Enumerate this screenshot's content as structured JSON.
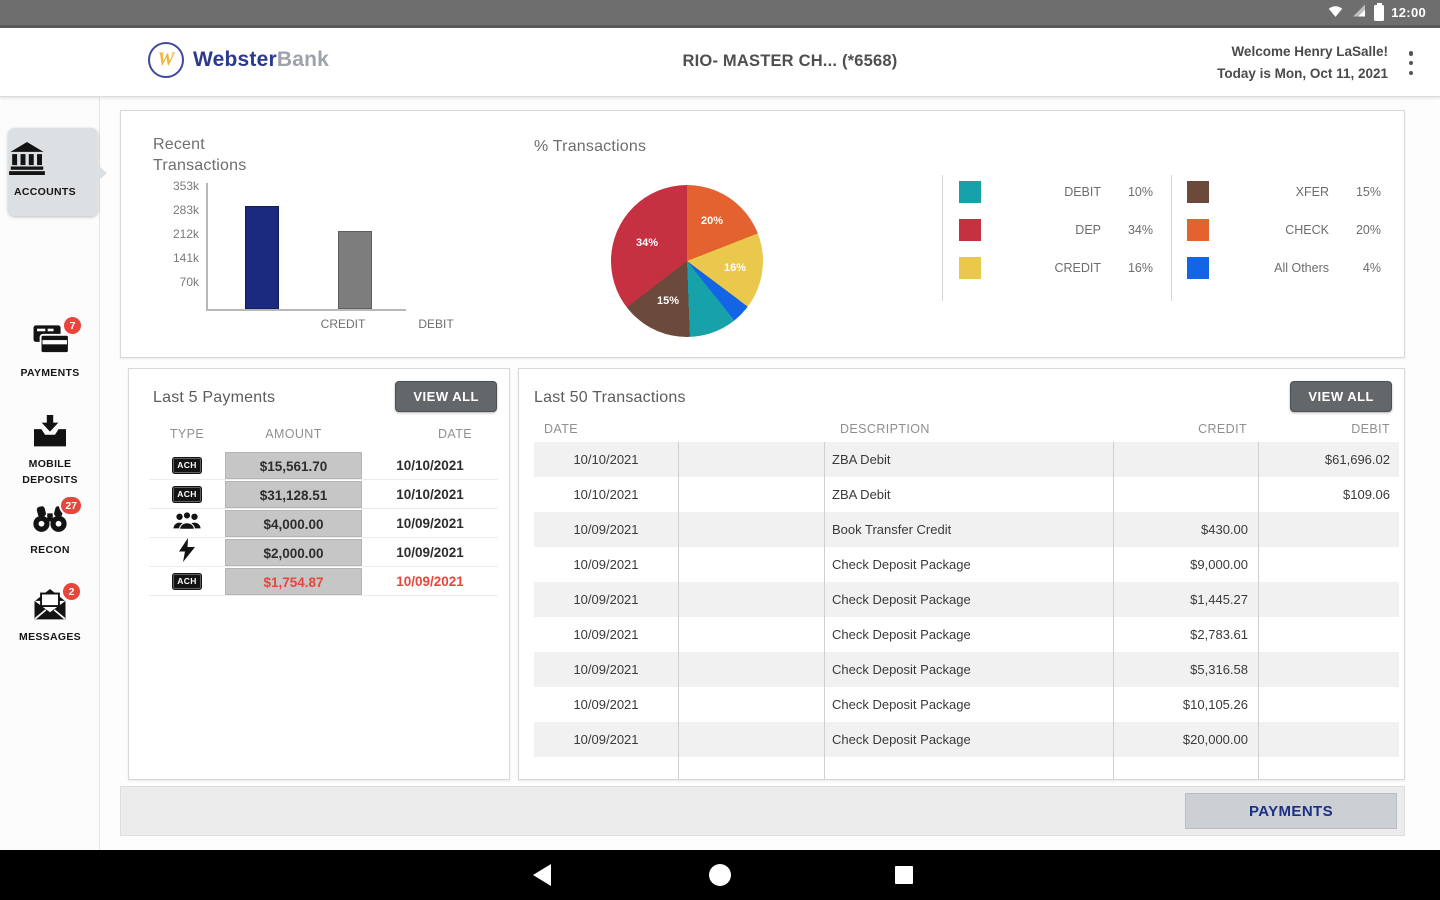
{
  "status_bar": {
    "time": "12:00"
  },
  "header": {
    "brand": {
      "logo_letter": "W",
      "name_primary": "Webster",
      "name_secondary": "Bank"
    },
    "account_title": "RIO- MASTER CH...  (*6568)",
    "welcome_line": "Welcome Henry LaSalle!",
    "date_line": "Today is Mon, Oct 11, 2021"
  },
  "sidebar": {
    "items": [
      {
        "label": "ACCOUNTS",
        "icon": "bank-icon",
        "selected": true,
        "badge": ""
      },
      {
        "label": "PAYMENTS",
        "icon": "cards-icon",
        "selected": false,
        "badge": "7"
      },
      {
        "label": "MOBILE DEPOSITS",
        "icon": "deposit-icon",
        "selected": false,
        "badge": ""
      },
      {
        "label": "RECON",
        "icon": "binoculars-icon",
        "selected": false,
        "badge": "27"
      },
      {
        "label": "MESSAGES",
        "icon": "envelope-icon",
        "selected": false,
        "badge": "2"
      }
    ]
  },
  "chart_data": [
    {
      "type": "bar",
      "title": "Recent\nTransactions",
      "categories": [
        "CREDIT",
        "DEBIT"
      ],
      "values": [
        310000,
        235000
      ],
      "colors": [
        "#1b2a7e",
        "#7d7d7d"
      ],
      "border_colors": [
        "#101c5e",
        "#5f5f5f"
      ],
      "ytick_labels": [
        "353k",
        "283k",
        "212k",
        "141k",
        "70k"
      ],
      "ylim": [
        0,
        378000
      ],
      "grid": false
    },
    {
      "type": "pie",
      "title": "% Transactions",
      "start_angle_deg": -4,
      "slices": [
        {
          "label": "CHECK",
          "value": 20,
          "pct_text": "20%",
          "color": "#e4622f"
        },
        {
          "label": "CREDIT",
          "value": 16,
          "pct_text": "16%",
          "color": "#eac84b"
        },
        {
          "label": "All Others",
          "value": 4,
          "pct_text": "4%",
          "color": "#1464e6"
        },
        {
          "label": "DEBIT",
          "value": 10,
          "pct_text": "10%",
          "color": "#16a2a8"
        },
        {
          "label": "XFER",
          "value": 15,
          "pct_text": "15%",
          "color": "#6c4a3b"
        },
        {
          "label": "DEP",
          "value": 34,
          "pct_text": "34%",
          "color": "#c53140"
        }
      ],
      "legend_position": "right",
      "legend_columns": [
        [
          {
            "label": "DEBIT",
            "pct_text": "10%"
          },
          {
            "label": "DEP",
            "pct_text": "34%"
          },
          {
            "label": "CREDIT",
            "pct_text": "16%"
          }
        ],
        [
          {
            "label": "XFER",
            "pct_text": "15%"
          },
          {
            "label": "CHECK",
            "pct_text": "20%"
          },
          {
            "label": "All Others",
            "pct_text": "4%"
          }
        ]
      ]
    }
  ],
  "payments_panel": {
    "title": "Last 5 Payments",
    "view_all_label": "VIEW ALL",
    "columns": [
      "TYPE",
      "AMOUNT",
      "DATE"
    ],
    "rows": [
      {
        "type": "ACH",
        "type_icon": "ach-badge-icon",
        "amount": "$15,561.70",
        "date": "10/10/2021",
        "alert": false
      },
      {
        "type": "ACH",
        "type_icon": "ach-badge-icon",
        "amount": "$31,128.51",
        "date": "10/10/2021",
        "alert": false
      },
      {
        "type": "",
        "type_icon": "people-icon",
        "amount": "$4,000.00",
        "date": "10/09/2021",
        "alert": false
      },
      {
        "type": "",
        "type_icon": "lightning-icon",
        "amount": "$2,000.00",
        "date": "10/09/2021",
        "alert": false
      },
      {
        "type": "ACH",
        "type_icon": "ach-badge-icon",
        "amount": "$1,754.87",
        "date": "10/09/2021",
        "alert": true
      }
    ]
  },
  "transactions_panel": {
    "title": "Last 50 Transactions",
    "view_all_label": "VIEW ALL",
    "columns": [
      "DATE",
      "",
      "DESCRIPTION",
      "CREDIT",
      "DEBIT"
    ],
    "rows": [
      {
        "date": "10/10/2021",
        "description": "ZBA Debit",
        "credit": "",
        "debit": "$61,696.02"
      },
      {
        "date": "10/10/2021",
        "description": "ZBA Debit",
        "credit": "",
        "debit": "$109.06"
      },
      {
        "date": "10/09/2021",
        "description": "Book Transfer Credit",
        "credit": "$430.00",
        "debit": ""
      },
      {
        "date": "10/09/2021",
        "description": "Check Deposit Package",
        "credit": "$9,000.00",
        "debit": ""
      },
      {
        "date": "10/09/2021",
        "description": "Check Deposit Package",
        "credit": "$1,445.27",
        "debit": ""
      },
      {
        "date": "10/09/2021",
        "description": "Check Deposit Package",
        "credit": "$2,783.61",
        "debit": ""
      },
      {
        "date": "10/09/2021",
        "description": "Check Deposit Package",
        "credit": "$5,316.58",
        "debit": ""
      },
      {
        "date": "10/09/2021",
        "description": "Check Deposit Package",
        "credit": "$10,105.26",
        "debit": ""
      },
      {
        "date": "10/09/2021",
        "description": "Check Deposit Package",
        "credit": "$20,000.00",
        "debit": ""
      }
    ]
  },
  "footer": {
    "payments_button_label": "PAYMENTS"
  },
  "colors": {
    "status_bar_bg": "#6e6e6e",
    "brand_navy": "#2b3a8f",
    "brand_gold": "#f0b434",
    "badge_red": "#e8453c",
    "alert_red": "#e8453c",
    "amount_cell_bg": "#c6c6c6",
    "view_all_bg": "#63676a",
    "payments_button_text": "#1b2f85",
    "row_alt_bg": "#f1f1f1",
    "nav_bar_bg": "#000000"
  }
}
